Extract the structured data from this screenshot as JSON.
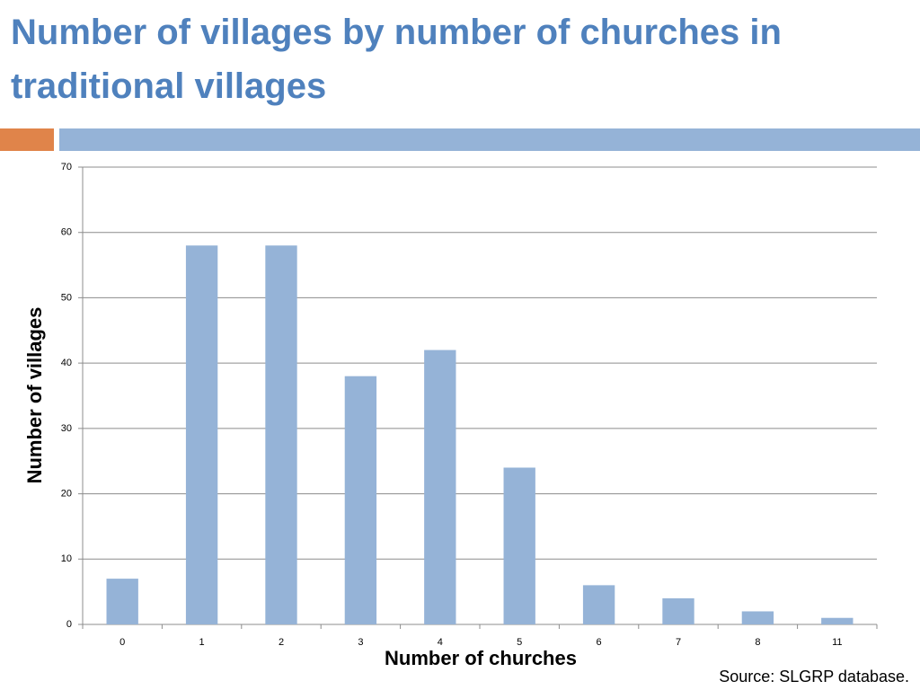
{
  "chart_data": {
    "type": "bar",
    "title": "Number of villages by number of churches in traditional villages",
    "x_label": "Number of churches",
    "y_label": "Number of villages",
    "source": "Source: SLGRP database.",
    "categories": [
      "0",
      "1",
      "2",
      "3",
      "4",
      "5",
      "6",
      "7",
      "8",
      "11"
    ],
    "values": [
      7,
      58,
      58,
      38,
      42,
      24,
      6,
      4,
      2,
      1
    ],
    "color": "#95b3d7",
    "ylim": [
      0,
      70
    ],
    "yticks": [
      0,
      10,
      20,
      30,
      40,
      50,
      60,
      70
    ],
    "grid": true
  }
}
